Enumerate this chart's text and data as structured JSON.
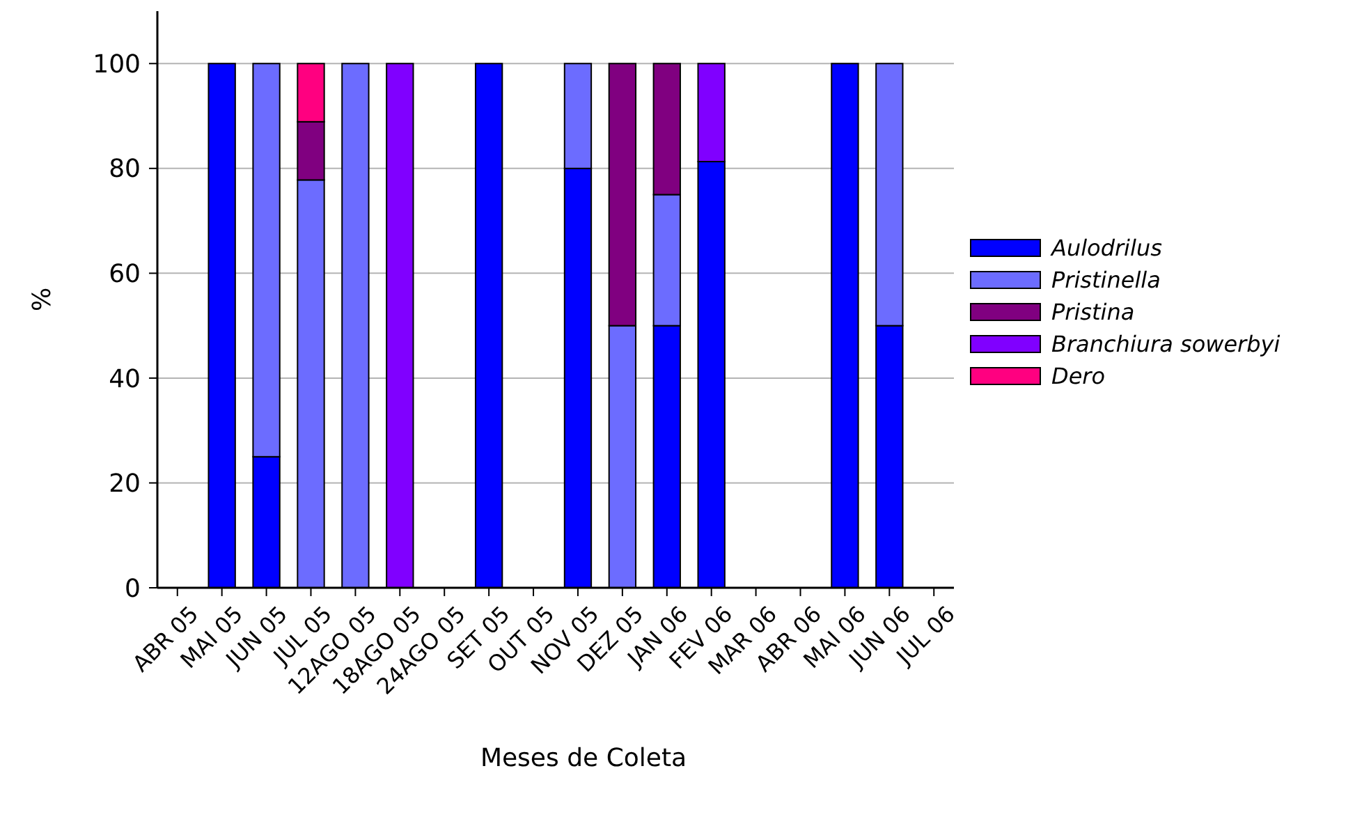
{
  "chart_data": {
    "type": "bar",
    "stacked": true,
    "xlabel": "Meses de Coleta",
    "ylabel": "%",
    "categories": [
      "ABR 05",
      "MAI 05",
      "JUN 05",
      "JUL 05",
      "12AGO 05",
      "18AGO 05",
      "24AGO 05",
      "SET 05",
      "OUT 05",
      "NOV 05",
      "DEZ 05",
      "JAN 06",
      "FEV 06",
      "MAR 06",
      "ABR 06",
      "MAI 06",
      "JUN 06",
      "JUL 06"
    ],
    "series": [
      {
        "name": "Aulodrilus",
        "color": "#0000ff",
        "values": [
          0,
          100,
          25,
          0,
          0,
          0,
          0,
          100,
          0,
          80,
          0,
          50,
          81.3,
          0,
          0,
          100,
          50,
          0
        ]
      },
      {
        "name": "Pristinella",
        "color": "#6c6cff",
        "values": [
          0,
          0,
          75,
          77.8,
          100,
          0,
          0,
          0,
          0,
          20,
          50,
          25,
          0,
          0,
          0,
          0,
          50,
          0
        ]
      },
      {
        "name": "Pristina",
        "color": "#800080",
        "values": [
          0,
          0,
          0,
          11.1,
          0,
          0,
          0,
          0,
          0,
          0,
          50,
          25,
          0,
          0,
          0,
          0,
          0,
          0
        ]
      },
      {
        "name": "Branchiura sowerbyi",
        "color": "#8000ff",
        "values": [
          0,
          0,
          0,
          0,
          0,
          100,
          0,
          0,
          0,
          0,
          0,
          0,
          18.7,
          0,
          0,
          0,
          0,
          0
        ]
      },
      {
        "name": "Dero",
        "color": "#ff0080",
        "values": [
          0,
          0,
          0,
          11.1,
          0,
          0,
          0,
          0,
          0,
          0,
          0,
          0,
          0,
          0,
          0,
          0,
          0,
          0
        ]
      }
    ],
    "ylim": [
      0,
      110
    ],
    "yticks": [
      0,
      20,
      40,
      60,
      80,
      100
    ],
    "grid": "y",
    "legend": "right"
  }
}
